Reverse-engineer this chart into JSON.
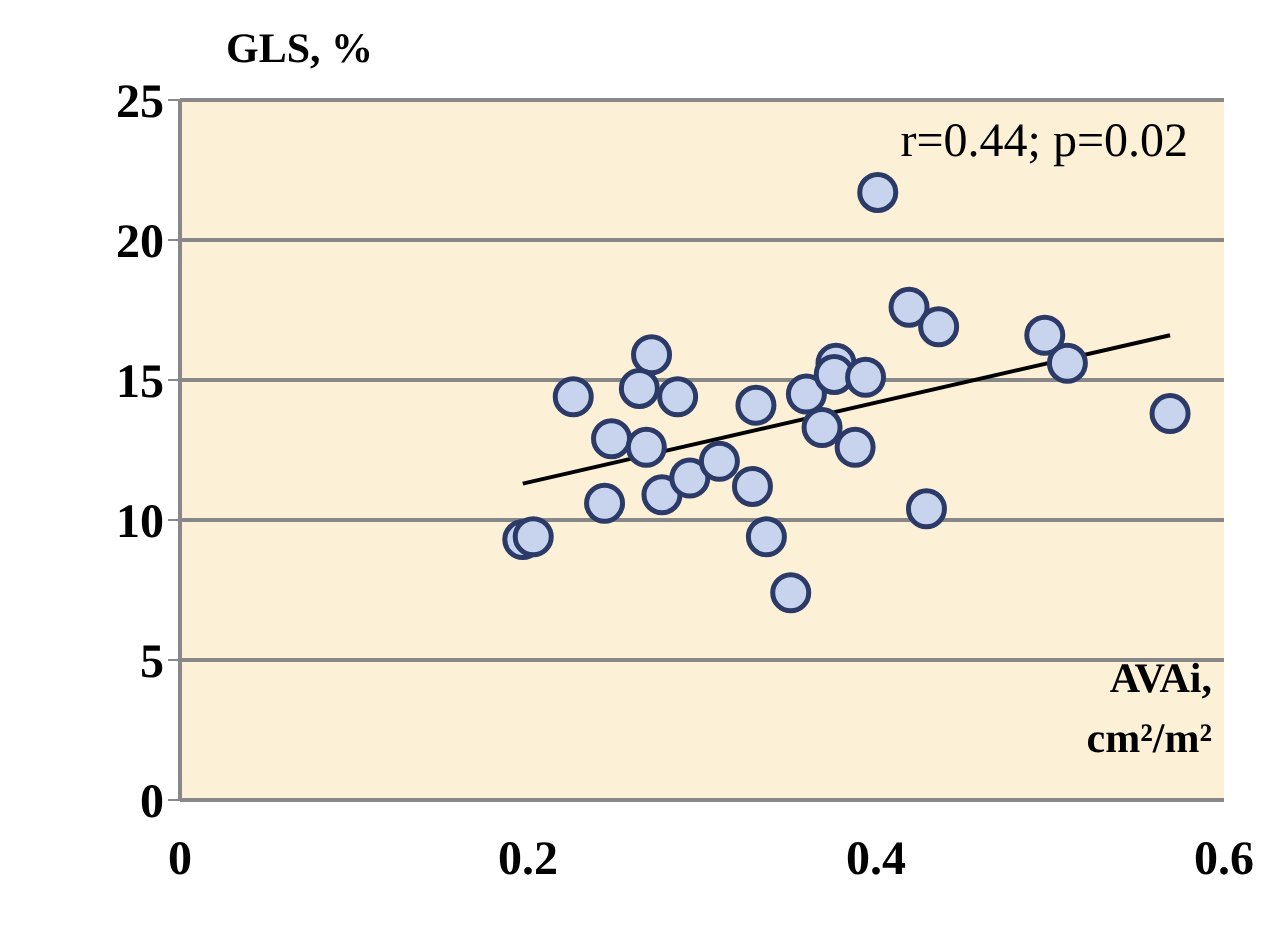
{
  "chart_data": {
    "type": "scatter",
    "xlabel": "AVAi, cm²/m²",
    "ylabel": "GLS, %",
    "annotations": [
      "r=0.44; p=0.02"
    ],
    "xlim": [
      0,
      0.6
    ],
    "xticks": [
      0,
      0.2,
      0.4,
      0.6
    ],
    "ylim": [
      0,
      25
    ],
    "yticks": [
      0,
      5,
      10,
      15,
      20,
      25
    ],
    "grid": "y",
    "marker": "circle",
    "series": [
      {
        "color": "#c8d4ee",
        "x": [
          0.197,
          0.203,
          0.226,
          0.271,
          0.264,
          0.286,
          0.248,
          0.268,
          0.244,
          0.277,
          0.293,
          0.31,
          0.329,
          0.331,
          0.337,
          0.351,
          0.36,
          0.401,
          0.419,
          0.436,
          0.377,
          0.376,
          0.394,
          0.369,
          0.388,
          0.429,
          0.497,
          0.51,
          0.569
        ],
        "values": [
          9.3,
          9.4,
          14.4,
          15.9,
          14.7,
          14.4,
          12.9,
          12.6,
          10.6,
          10.9,
          11.5,
          12.1,
          11.2,
          14.1,
          9.4,
          7.4,
          14.5,
          21.7,
          17.6,
          16.9,
          15.6,
          15.2,
          15.1,
          13.3,
          12.6,
          10.4,
          16.6,
          15.6,
          13.8
        ]
      },
      {
        "type": "line",
        "marker": "none",
        "color": "#000000",
        "x": [
          0.197,
          0.569
        ],
        "values": [
          11.3,
          16.6
        ]
      }
    ]
  }
}
